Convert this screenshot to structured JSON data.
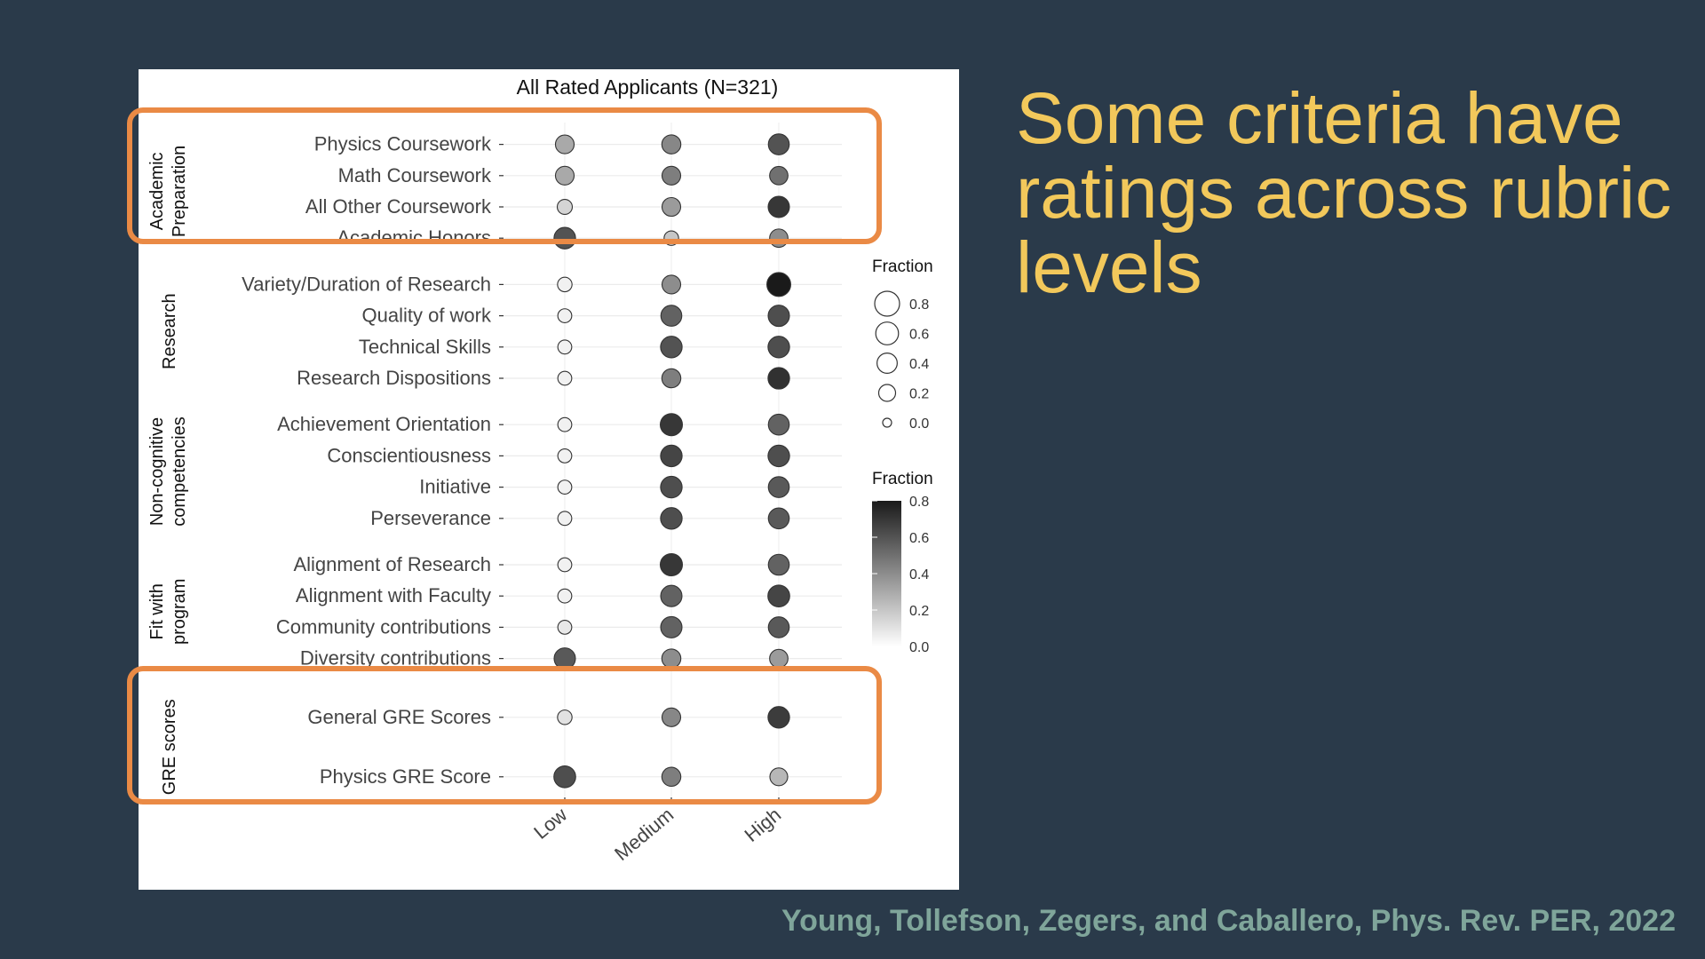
{
  "slide": {
    "headline": "Some criteria have ratings across rubric levels",
    "citation": "Young, Tollefson, Zegers, and Caballero, Phys. Rev. PER, 2022",
    "highlight_color": "#ea8a45",
    "headline_color": "#f2c85b",
    "background_color": "#2a3a4a"
  },
  "chart_data": {
    "type": "scatter",
    "title": "All Rated Applicants (N=321)",
    "x_categories": [
      "Low",
      "Medium",
      "High"
    ],
    "groups": [
      {
        "name": "Academic Preparation",
        "label_lines": [
          "Academic",
          "Preparation"
        ],
        "highlighted": true,
        "rows": [
          {
            "label": "Physics Coursework",
            "size": [
              0.3,
              0.32,
              0.45
            ],
            "color": [
              0.3,
              0.42,
              0.6
            ]
          },
          {
            "label": "Math Coursework",
            "size": [
              0.3,
              0.3,
              0.28
            ],
            "color": [
              0.3,
              0.45,
              0.5
            ]
          },
          {
            "label": "All Other Coursework",
            "size": [
              0.12,
              0.3,
              0.48
            ],
            "color": [
              0.15,
              0.35,
              0.7
            ]
          },
          {
            "label": "Academic Honors",
            "size": [
              0.5,
              0.1,
              0.28
            ],
            "color": [
              0.6,
              0.2,
              0.4
            ]
          }
        ]
      },
      {
        "name": "Research",
        "label_lines": [
          "Research"
        ],
        "highlighted": false,
        "rows": [
          {
            "label": "Variety/Duration of Research",
            "size": [
              0.1,
              0.3,
              0.7
            ],
            "color": [
              0.05,
              0.4,
              0.8
            ]
          },
          {
            "label": "Quality of work",
            "size": [
              0.08,
              0.45,
              0.48
            ],
            "color": [
              0.05,
              0.55,
              0.62
            ]
          },
          {
            "label": "Technical Skills",
            "size": [
              0.08,
              0.5,
              0.5
            ],
            "color": [
              0.05,
              0.6,
              0.62
            ]
          },
          {
            "label": "Research Dispositions",
            "size": [
              0.08,
              0.32,
              0.5
            ],
            "color": [
              0.05,
              0.45,
              0.72
            ]
          }
        ]
      },
      {
        "name": "Non-cognitive competencies",
        "label_lines": [
          "Non-cognitive",
          "competencies"
        ],
        "highlighted": false,
        "rows": [
          {
            "label": "Achievement Orientation",
            "size": [
              0.08,
              0.55,
              0.45
            ],
            "color": [
              0.05,
              0.7,
              0.55
            ]
          },
          {
            "label": "Conscientiousness",
            "size": [
              0.08,
              0.5,
              0.5
            ],
            "color": [
              0.05,
              0.65,
              0.62
            ]
          },
          {
            "label": "Initiative",
            "size": [
              0.08,
              0.5,
              0.45
            ],
            "color": [
              0.05,
              0.62,
              0.58
            ]
          },
          {
            "label": "Perseverance",
            "size": [
              0.08,
              0.5,
              0.45
            ],
            "color": [
              0.05,
              0.62,
              0.58
            ]
          }
        ]
      },
      {
        "name": "Fit with program",
        "label_lines": [
          "Fit with",
          "program"
        ],
        "highlighted": false,
        "rows": [
          {
            "label": "Alignment of Research",
            "size": [
              0.08,
              0.55,
              0.45
            ],
            "color": [
              0.05,
              0.7,
              0.55
            ]
          },
          {
            "label": "Alignment with Faculty",
            "size": [
              0.08,
              0.48,
              0.52
            ],
            "color": [
              0.05,
              0.55,
              0.65
            ]
          },
          {
            "label": "Community contributions",
            "size": [
              0.08,
              0.48,
              0.45
            ],
            "color": [
              0.08,
              0.55,
              0.58
            ]
          },
          {
            "label": "Diversity contributions",
            "size": [
              0.48,
              0.32,
              0.28
            ],
            "color": [
              0.58,
              0.4,
              0.35
            ]
          }
        ]
      },
      {
        "name": "GRE scores",
        "label_lines": [
          "GRE scores"
        ],
        "highlighted": true,
        "rows": [
          {
            "label": "General GRE Scores",
            "size": [
              0.1,
              0.3,
              0.5
            ],
            "color": [
              0.1,
              0.42,
              0.68
            ]
          },
          {
            "label": "Physics GRE Score",
            "size": [
              0.52,
              0.32,
              0.25
            ],
            "color": [
              0.62,
              0.45,
              0.25
            ]
          }
        ]
      }
    ],
    "size_legend": {
      "title": "Fraction",
      "values": [
        0.8,
        0.6,
        0.4,
        0.2,
        0.0
      ],
      "labels": [
        "0.8",
        "0.6",
        "0.4",
        "0.2",
        "0.0"
      ]
    },
    "color_legend": {
      "title": "Fraction",
      "range": [
        0.0,
        0.8
      ],
      "tick_labels": [
        "0.8",
        "0.6",
        "0.4",
        "0.2",
        "0.0"
      ]
    },
    "grid": true,
    "legend_position": "right"
  }
}
